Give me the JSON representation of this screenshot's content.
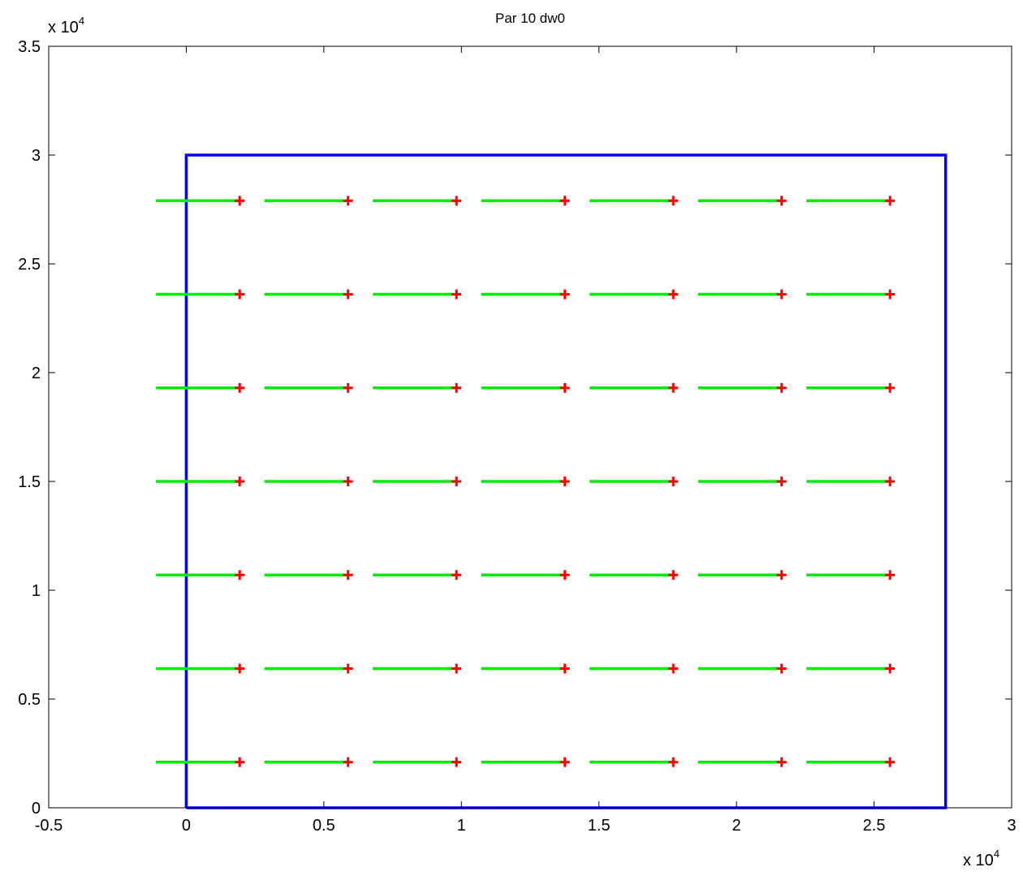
{
  "chart_data": {
    "type": "line",
    "title": "Par 10 dw0",
    "xlabel": "",
    "ylabel": "",
    "xlim": [
      -5000,
      30000
    ],
    "ylim": [
      0,
      35000
    ],
    "x_ticks": [
      -5000,
      0,
      5000,
      10000,
      15000,
      20000,
      25000,
      30000
    ],
    "y_ticks": [
      0,
      5000,
      10000,
      15000,
      20000,
      25000,
      30000,
      35000
    ],
    "x_tick_labels": [
      "-0.5",
      "0",
      "0.5",
      "1",
      "1.5",
      "2",
      "2.5",
      "3"
    ],
    "y_tick_labels": [
      "0",
      "0.5",
      "1",
      "1.5",
      "2",
      "2.5",
      "3",
      "3.5"
    ],
    "x_multiplier": {
      "base": "x 10",
      "exp": "4"
    },
    "y_multiplier": {
      "base": "x 10",
      "exp": "4"
    },
    "grid": false,
    "legend": false,
    "boundary": {
      "name": "",
      "color": "#0000ff",
      "x": [
        0,
        27600,
        27600,
        0,
        0
      ],
      "y": [
        0,
        0,
        30000,
        30000,
        0
      ]
    },
    "segments": {
      "color": "#00ee00",
      "x_start": [
        -1100,
        2840,
        6780,
        10720,
        14660,
        18600,
        22540
      ],
      "x_end": [
        1940,
        5880,
        9820,
        13760,
        17700,
        21640,
        25580
      ],
      "y": [
        2100,
        6400,
        10700,
        15000,
        19300,
        23600,
        27900
      ]
    },
    "markers": {
      "color": "#ff0000",
      "symbol": "+",
      "x": [
        1940,
        5880,
        9820,
        13760,
        17700,
        21640,
        25580
      ],
      "y": [
        2100,
        6400,
        10700,
        15000,
        19300,
        23600,
        27900
      ]
    }
  }
}
